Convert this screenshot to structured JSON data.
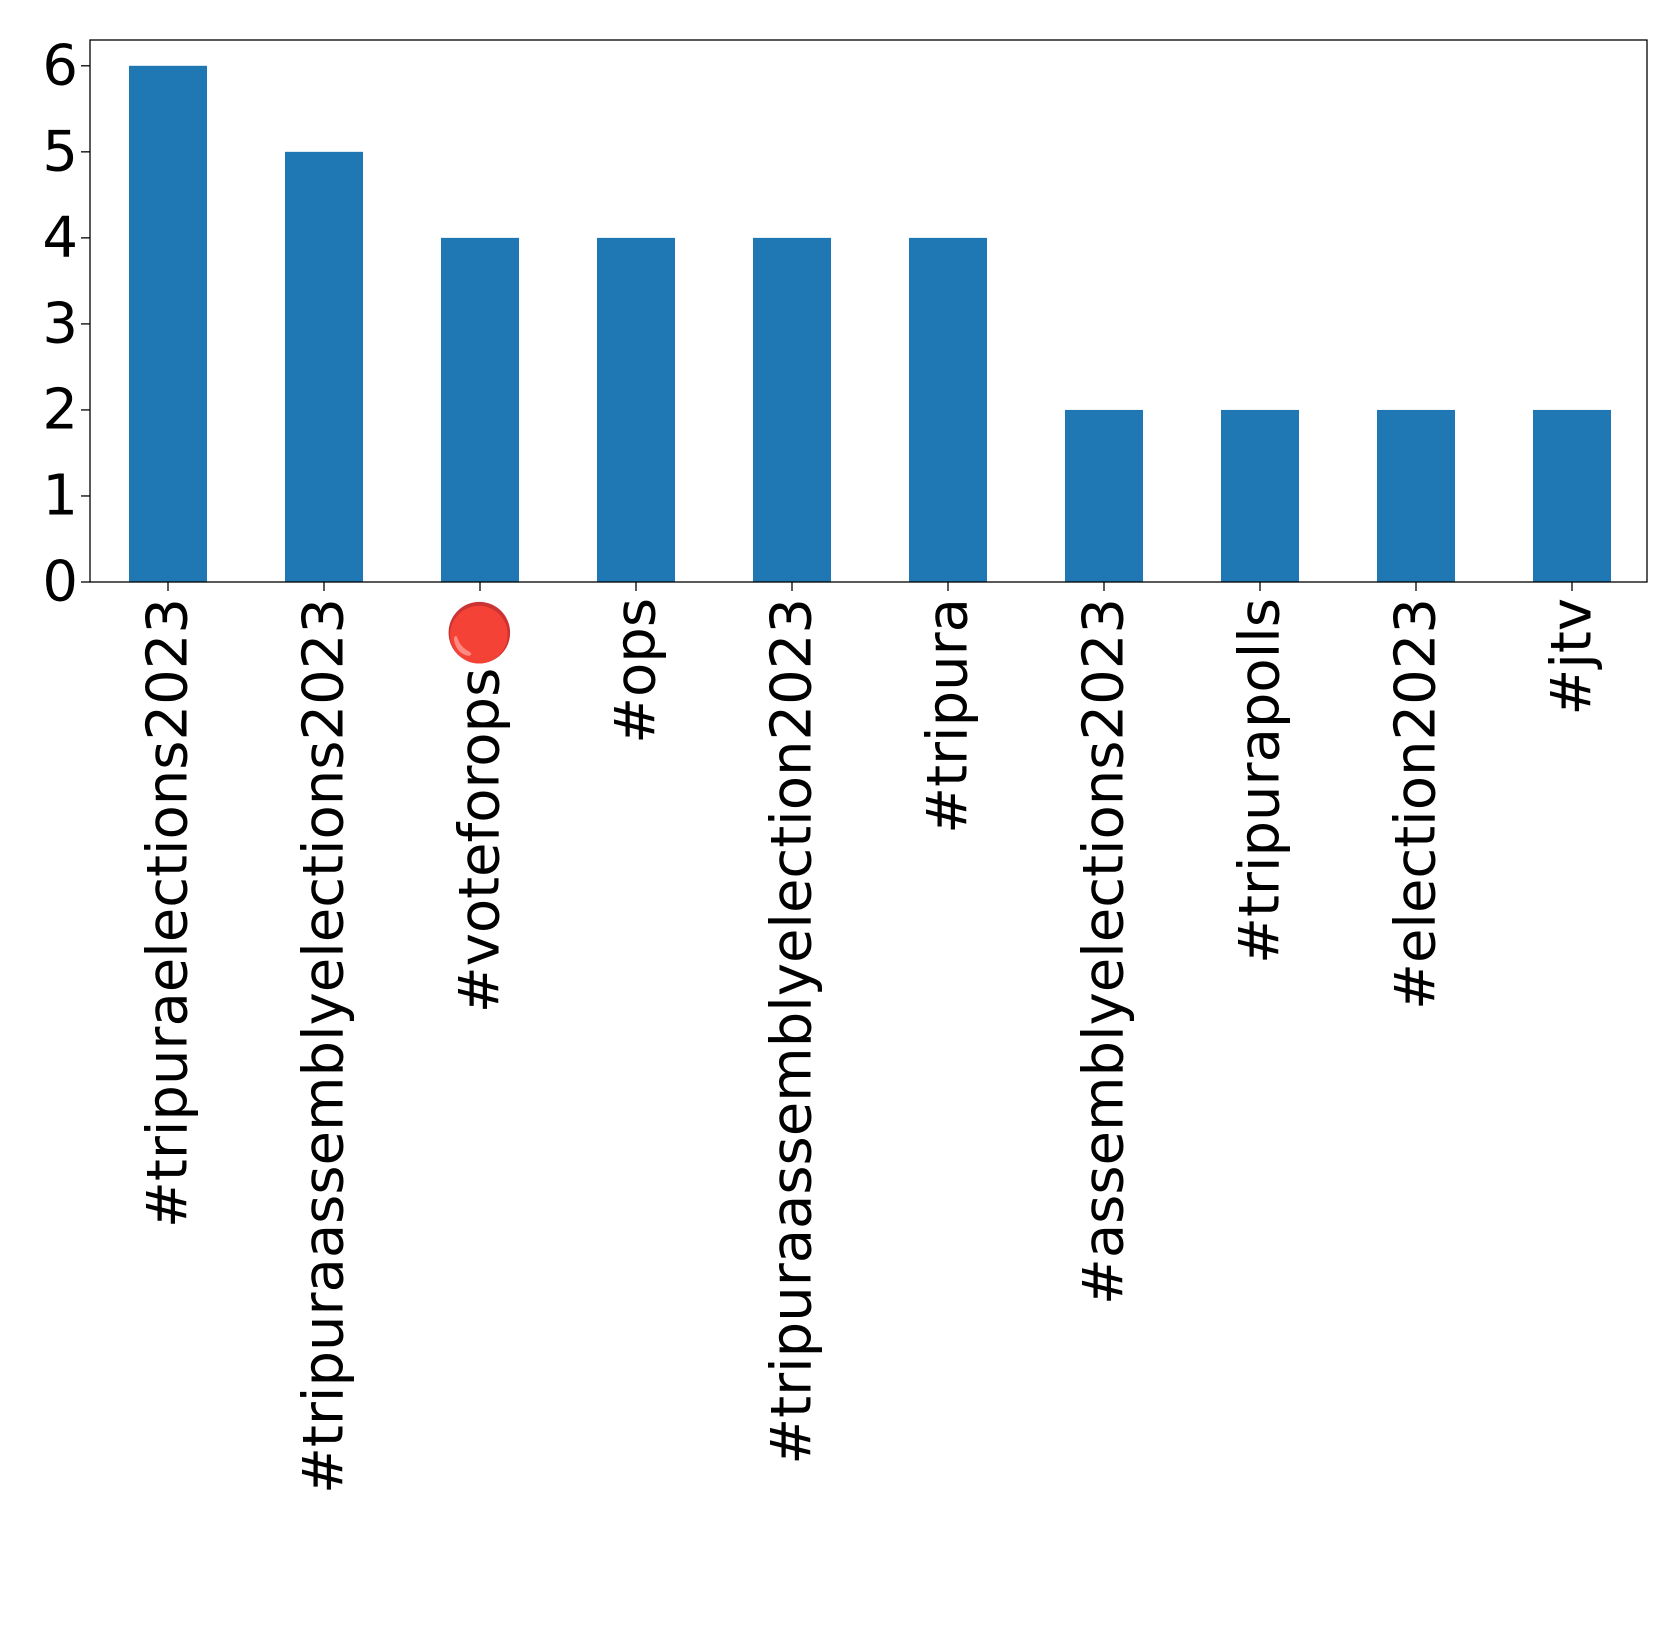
{
  "chart_data": {
    "type": "bar",
    "categories": [
      "#tripuraelections2023",
      "#tripuraassemblyelections2023",
      "#voteforops🔴",
      "#ops",
      "#tripuraassemblyelection2023",
      "#tripura",
      "#assemblyelections2023",
      "#tripurapolls",
      "#election2023",
      "#jtv"
    ],
    "values": [
      6,
      5,
      4,
      4,
      4,
      4,
      2,
      2,
      2,
      2
    ],
    "yticks": [
      "0",
      "1",
      "2",
      "3",
      "4",
      "5",
      "6"
    ],
    "title": "",
    "xlabel": "",
    "ylabel": "",
    "ylim": [
      0,
      6.3
    ],
    "grid": false,
    "legend": "none",
    "bar_color": "#1f77b4",
    "axis_color": "#000000"
  }
}
